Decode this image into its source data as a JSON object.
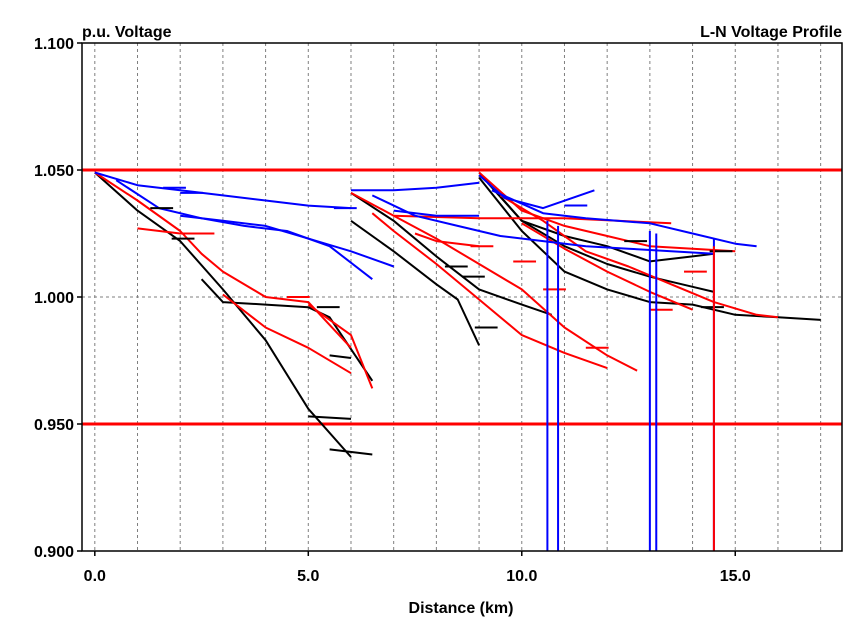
{
  "chart_data": {
    "type": "line",
    "title": "L-N Voltage Profile",
    "ylabel": "p.u. Voltage",
    "xlabel": "Distance (km)",
    "xlim": [
      -0.3,
      17.5
    ],
    "ylim": [
      0.9,
      1.1
    ],
    "x_ticks": [
      0,
      5,
      10,
      15
    ],
    "x_tick_labels": [
      "0.0",
      "5.0",
      "10.0",
      "15.0"
    ],
    "y_ticks": [
      0.9,
      0.95,
      1.0,
      1.05,
      1.1
    ],
    "y_tick_labels": [
      "0.900",
      "0.950",
      "1.000",
      "1.050",
      "1.100"
    ],
    "grid": true,
    "grid_x": [
      0,
      1,
      2,
      3,
      4,
      5,
      6,
      7,
      8,
      9,
      10,
      11,
      12,
      13,
      14,
      15,
      16,
      17
    ],
    "limits": [
      {
        "name": "upper-limit",
        "y": 1.05,
        "color": "#ff0000"
      },
      {
        "name": "lower-limit",
        "y": 0.95,
        "color": "#ff0000"
      }
    ],
    "colors": {
      "phase_a": "#000000",
      "phase_b": "#ff0000",
      "phase_c": "#0000ff"
    },
    "series": [
      {
        "color": "#000000",
        "points": [
          [
            0.0,
            1.049
          ],
          [
            1.0,
            1.034
          ],
          [
            2.0,
            1.022
          ],
          [
            3.0,
            1.003
          ],
          [
            4.0,
            0.983
          ],
          [
            5.0,
            0.956
          ],
          [
            6.0,
            0.937
          ]
        ]
      },
      {
        "color": "#000000",
        "points": [
          [
            5.0,
            0.953
          ],
          [
            6.0,
            0.952
          ]
        ]
      },
      {
        "color": "#000000",
        "points": [
          [
            5.5,
            0.94
          ],
          [
            6.5,
            0.938
          ]
        ]
      },
      {
        "color": "#000000",
        "points": [
          [
            2.5,
            1.007
          ],
          [
            3.0,
            0.998
          ],
          [
            4.0,
            0.997
          ],
          [
            5.0,
            0.996
          ],
          [
            5.5,
            0.992
          ],
          [
            6.5,
            0.967
          ]
        ]
      },
      {
        "color": "#000000",
        "points": [
          [
            5.5,
            0.977
          ],
          [
            6.0,
            0.976
          ]
        ]
      },
      {
        "color": "#000000",
        "points": [
          [
            6.0,
            1.03
          ],
          [
            7.0,
            1.018
          ],
          [
            8.0,
            1.005
          ],
          [
            8.5,
            0.999
          ],
          [
            9.0,
            0.981
          ]
        ]
      },
      {
        "color": "#000000",
        "points": [
          [
            6.0,
            1.041
          ],
          [
            7.0,
            1.03
          ],
          [
            8.0,
            1.016
          ],
          [
            9.0,
            1.003
          ],
          [
            10.0,
            0.997
          ],
          [
            10.7,
            0.993
          ]
        ]
      },
      {
        "color": "#000000",
        "points": [
          [
            9.0,
            1.049
          ],
          [
            10.0,
            1.03
          ],
          [
            11.0,
            1.024
          ],
          [
            12.0,
            1.02
          ],
          [
            13.0,
            1.014
          ],
          [
            14.0,
            1.016
          ],
          [
            14.5,
            1.017
          ]
        ]
      },
      {
        "color": "#000000",
        "points": [
          [
            9.0,
            1.047
          ],
          [
            10.0,
            1.026
          ],
          [
            11.0,
            1.01
          ],
          [
            12.0,
            1.003
          ],
          [
            13.0,
            0.998
          ],
          [
            14.0,
            0.997
          ],
          [
            15.0,
            0.993
          ],
          [
            16.0,
            0.992
          ],
          [
            17.0,
            0.991
          ]
        ]
      },
      {
        "color": "#000000",
        "points": [
          [
            9.2,
            1.045
          ],
          [
            10.0,
            1.03
          ],
          [
            11.0,
            1.02
          ],
          [
            12.0,
            1.013
          ],
          [
            13.0,
            1.008
          ],
          [
            14.0,
            1.004
          ],
          [
            14.5,
            1.002
          ]
        ]
      },
      {
        "color": "#ff0000",
        "points": [
          [
            0.0,
            1.049
          ],
          [
            1.0,
            1.038
          ],
          [
            2.0,
            1.026
          ],
          [
            2.5,
            1.017
          ],
          [
            3.0,
            1.01
          ],
          [
            4.0,
            1.0
          ],
          [
            5.0,
            0.998
          ],
          [
            6.0,
            0.98
          ]
        ]
      },
      {
        "color": "#ff0000",
        "points": [
          [
            1.0,
            1.027
          ],
          [
            2.0,
            1.025
          ],
          [
            2.8,
            1.025
          ]
        ]
      },
      {
        "color": "#ff0000",
        "points": [
          [
            3.0,
            1.001
          ],
          [
            4.0,
            0.988
          ],
          [
            5.0,
            0.98
          ],
          [
            6.0,
            0.97
          ]
        ]
      },
      {
        "color": "#ff0000",
        "points": [
          [
            5.0,
            0.997
          ],
          [
            6.0,
            0.985
          ],
          [
            6.5,
            0.964
          ]
        ]
      },
      {
        "color": "#ff0000",
        "points": [
          [
            6.0,
            1.041
          ],
          [
            7.0,
            1.032
          ],
          [
            8.0,
            1.023
          ],
          [
            9.0,
            1.013
          ],
          [
            10.0,
            1.003
          ],
          [
            11.0,
            0.988
          ],
          [
            12.0,
            0.977
          ],
          [
            12.7,
            0.971
          ]
        ]
      },
      {
        "color": "#ff0000",
        "points": [
          [
            6.5,
            1.033
          ],
          [
            7.0,
            1.026
          ],
          [
            8.0,
            1.013
          ],
          [
            9.0,
            0.999
          ],
          [
            10.0,
            0.985
          ],
          [
            11.0,
            0.978
          ],
          [
            12.0,
            0.972
          ]
        ]
      },
      {
        "color": "#ff0000",
        "points": [
          [
            7.5,
            1.025
          ],
          [
            8.0,
            1.022
          ],
          [
            9.0,
            1.02
          ]
        ]
      },
      {
        "color": "#ff0000",
        "points": [
          [
            9.0,
            1.049
          ],
          [
            10.0,
            1.034
          ],
          [
            11.0,
            1.028
          ],
          [
            12.0,
            1.024
          ],
          [
            13.0,
            1.02
          ],
          [
            14.0,
            1.019
          ],
          [
            15.0,
            1.018
          ]
        ]
      },
      {
        "color": "#ff0000",
        "points": [
          [
            9.5,
            1.04
          ],
          [
            10.5,
            1.03
          ],
          [
            11.5,
            1.018
          ],
          [
            12.5,
            1.012
          ],
          [
            13.5,
            1.005
          ],
          [
            14.5,
            0.998
          ],
          [
            15.5,
            0.993
          ],
          [
            16.0,
            0.992
          ]
        ]
      },
      {
        "color": "#ff0000",
        "points": [
          [
            10.0,
            1.029
          ],
          [
            11.0,
            1.019
          ],
          [
            12.0,
            1.01
          ],
          [
            13.0,
            1.002
          ],
          [
            14.0,
            0.995
          ]
        ]
      },
      {
        "color": "#ff0000",
        "points": [
          [
            7.0,
            1.032
          ],
          [
            9.0,
            1.031
          ],
          [
            11.0,
            1.031
          ],
          [
            13.5,
            1.029
          ]
        ]
      },
      {
        "color": "#0000ff",
        "points": [
          [
            0.0,
            1.049
          ],
          [
            1.0,
            1.044
          ],
          [
            2.0,
            1.042
          ],
          [
            3.0,
            1.04
          ],
          [
            4.0,
            1.038
          ],
          [
            5.0,
            1.036
          ],
          [
            6.0,
            1.035
          ]
        ]
      },
      {
        "color": "#0000ff",
        "points": [
          [
            0.5,
            1.046
          ],
          [
            1.5,
            1.035
          ],
          [
            2.5,
            1.031
          ],
          [
            3.5,
            1.028
          ],
          [
            4.5,
            1.026
          ],
          [
            5.5,
            1.02
          ],
          [
            6.5,
            1.007
          ]
        ]
      },
      {
        "color": "#0000ff",
        "points": [
          [
            2.0,
            1.032
          ],
          [
            3.0,
            1.03
          ],
          [
            4.0,
            1.028
          ],
          [
            5.0,
            1.023
          ],
          [
            6.0,
            1.018
          ],
          [
            7.0,
            1.012
          ]
        ]
      },
      {
        "color": "#0000ff",
        "points": [
          [
            6.0,
            1.042
          ],
          [
            7.0,
            1.042
          ],
          [
            8.0,
            1.043
          ],
          [
            9.0,
            1.045
          ]
        ]
      },
      {
        "color": "#0000ff",
        "points": [
          [
            6.5,
            1.04
          ],
          [
            7.5,
            1.032
          ],
          [
            8.5,
            1.028
          ],
          [
            9.5,
            1.024
          ],
          [
            10.5,
            1.022
          ],
          [
            11.5,
            1.02
          ],
          [
            12.5,
            1.019
          ],
          [
            13.5,
            1.018
          ],
          [
            14.5,
            1.017
          ]
        ]
      },
      {
        "color": "#0000ff",
        "points": [
          [
            9.0,
            1.048
          ],
          [
            9.6,
            1.039
          ],
          [
            10.5,
            1.035
          ],
          [
            11.7,
            1.042
          ]
        ]
      },
      {
        "color": "#0000ff",
        "points": [
          [
            9.3,
            1.042
          ],
          [
            10.5,
            1.033
          ],
          [
            11.5,
            1.031
          ],
          [
            13.0,
            1.029
          ],
          [
            14.0,
            1.025
          ],
          [
            15.0,
            1.021
          ],
          [
            15.5,
            1.02
          ]
        ]
      },
      {
        "color": "#0000ff",
        "points": [
          [
            7.0,
            1.034
          ],
          [
            8.0,
            1.032
          ],
          [
            9.0,
            1.032
          ]
        ]
      }
    ],
    "branch_ticks": [
      {
        "x": 1.6,
        "y": 1.043,
        "color": "#0000ff"
      },
      {
        "x": 2.0,
        "y": 1.041,
        "color": "#0000ff"
      },
      {
        "x": 1.3,
        "y": 1.035,
        "color": "#000000"
      },
      {
        "x": 1.8,
        "y": 1.023,
        "color": "#000000"
      },
      {
        "x": 4.5,
        "y": 1.0,
        "color": "#ff0000"
      },
      {
        "x": 5.2,
        "y": 0.996,
        "color": "#000000"
      },
      {
        "x": 8.2,
        "y": 1.012,
        "color": "#000000"
      },
      {
        "x": 8.6,
        "y": 1.008,
        "color": "#000000"
      },
      {
        "x": 8.9,
        "y": 0.988,
        "color": "#000000"
      },
      {
        "x": 8.8,
        "y": 1.02,
        "color": "#ff0000"
      },
      {
        "x": 11.5,
        "y": 0.98,
        "color": "#ff0000"
      },
      {
        "x": 12.4,
        "y": 1.022,
        "color": "#000000"
      },
      {
        "x": 13.0,
        "y": 0.995,
        "color": "#ff0000"
      },
      {
        "x": 13.8,
        "y": 1.01,
        "color": "#ff0000"
      },
      {
        "x": 14.2,
        "y": 0.996,
        "color": "#000000"
      },
      {
        "x": 14.4,
        "y": 1.018,
        "color": "#000000"
      },
      {
        "x": 11.0,
        "y": 1.036,
        "color": "#0000ff"
      },
      {
        "x": 5.6,
        "y": 1.035,
        "color": "#0000ff"
      },
      {
        "x": 9.8,
        "y": 1.014,
        "color": "#ff0000"
      },
      {
        "x": 10.5,
        "y": 1.003,
        "color": "#ff0000"
      }
    ],
    "drops": [
      {
        "x": 10.6,
        "y_top": 1.03,
        "color": "#0000ff"
      },
      {
        "x": 10.85,
        "y_top": 1.028,
        "color": "#0000ff"
      },
      {
        "x": 13.0,
        "y_top": 1.026,
        "color": "#0000ff"
      },
      {
        "x": 13.15,
        "y_top": 1.025,
        "color": "#0000ff"
      },
      {
        "x": 14.5,
        "y_top": 1.023,
        "color": "#0000ff"
      },
      {
        "x": 14.5,
        "y_top": 1.02,
        "color": "#ff0000"
      }
    ]
  }
}
